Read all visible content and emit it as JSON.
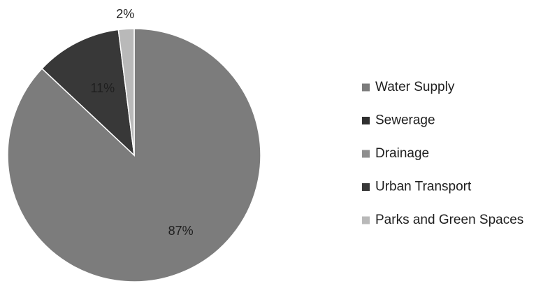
{
  "chart_data": {
    "type": "pie",
    "title": "",
    "legend_position": "right",
    "start": "12 o'clock, clockwise",
    "slices": [
      {
        "label": "Water Supply",
        "value": 87,
        "display": "87%",
        "color": "#7c7c7c"
      },
      {
        "label": "Sewerage",
        "value": 0,
        "display": "",
        "color": "#2f2f2f"
      },
      {
        "label": "Drainage",
        "value": 0,
        "display": "",
        "color": "#8e8e8e"
      },
      {
        "label": "Urban Transport",
        "value": 11,
        "display": "11%",
        "color": "#383838"
      },
      {
        "label": "Parks and Green Spaces",
        "value": 2,
        "display": "2%",
        "color": "#b9b9b9"
      }
    ]
  }
}
